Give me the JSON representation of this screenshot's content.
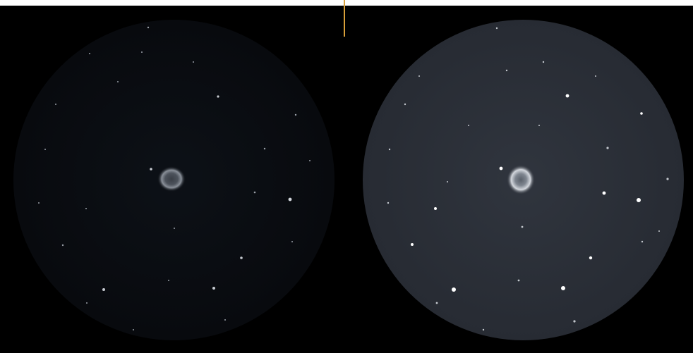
{
  "colors": {
    "background": "#000000",
    "top_strip": "#ffffff",
    "divider": "#d9a03a",
    "left_field": "#0b0e13",
    "right_field": "#2a2f37",
    "star": "#ffffff",
    "nebula_ring": "#c9ced6"
  },
  "panels": [
    {
      "name": "left-eyepiece-view",
      "brightness": "dim"
    },
    {
      "name": "right-eyepiece-view",
      "brightness": "bright"
    }
  ]
}
